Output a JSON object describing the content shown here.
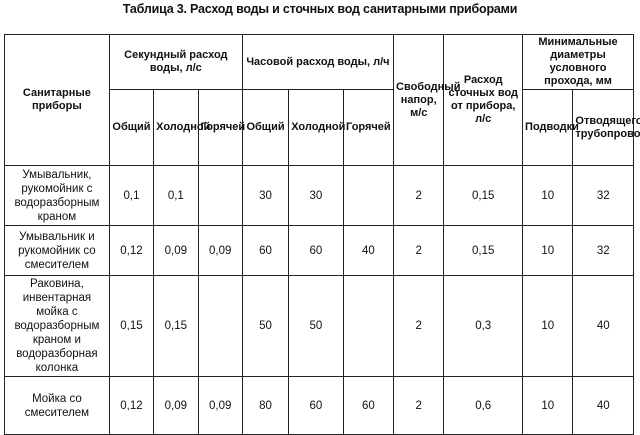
{
  "title": "Таблица 3. Расход воды и сточных вод санитарными приборами",
  "headers": {
    "device": "Санитарные приборы",
    "sec_flow": "Секундный расход воды, л/с",
    "hour_flow": "Часовой расход воды, л/ч",
    "free_head": "Свободный напор, м/с",
    "waste_flow": "Расход сточных вод от прибора, л/с",
    "min_diam": "Минимальные диаметры условного прохода, мм",
    "total": "Общий",
    "cold": "Холодной",
    "hot": "Горячей",
    "supply": "Подводки",
    "drain": "Отводящего трубопровода"
  },
  "rows": [
    {
      "device": "Умывальник, рукомойник с водоразборным краном",
      "sec_total": "0,1",
      "sec_cold": "0,1",
      "sec_hot": "",
      "hr_total": "30",
      "hr_cold": "30",
      "hr_hot": "",
      "head": "2",
      "waste": "0,15",
      "supply": "10",
      "drain": "32"
    },
    {
      "device": "Умывальник и рукомойник со смесителем",
      "sec_total": "0,12",
      "sec_cold": "0,09",
      "sec_hot": "0,09",
      "hr_total": "60",
      "hr_cold": "60",
      "hr_hot": "40",
      "head": "2",
      "waste": "0,15",
      "supply": "10",
      "drain": "32"
    },
    {
      "device": "Раковина, инвентарная мойка с водоразборным краном и водоразборная колонка",
      "sec_total": "0,15",
      "sec_cold": "0,15",
      "sec_hot": "",
      "hr_total": "50",
      "hr_cold": "50",
      "hr_hot": "",
      "head": "2",
      "waste": "0,3",
      "supply": "10",
      "drain": "40"
    },
    {
      "device": "Мойка со смесителем",
      "sec_total": "0,12",
      "sec_cold": "0,09",
      "sec_hot": "0,09",
      "hr_total": "80",
      "hr_cold": "60",
      "hr_hot": "60",
      "head": "2",
      "waste": "0,6",
      "supply": "10",
      "drain": "40"
    }
  ]
}
